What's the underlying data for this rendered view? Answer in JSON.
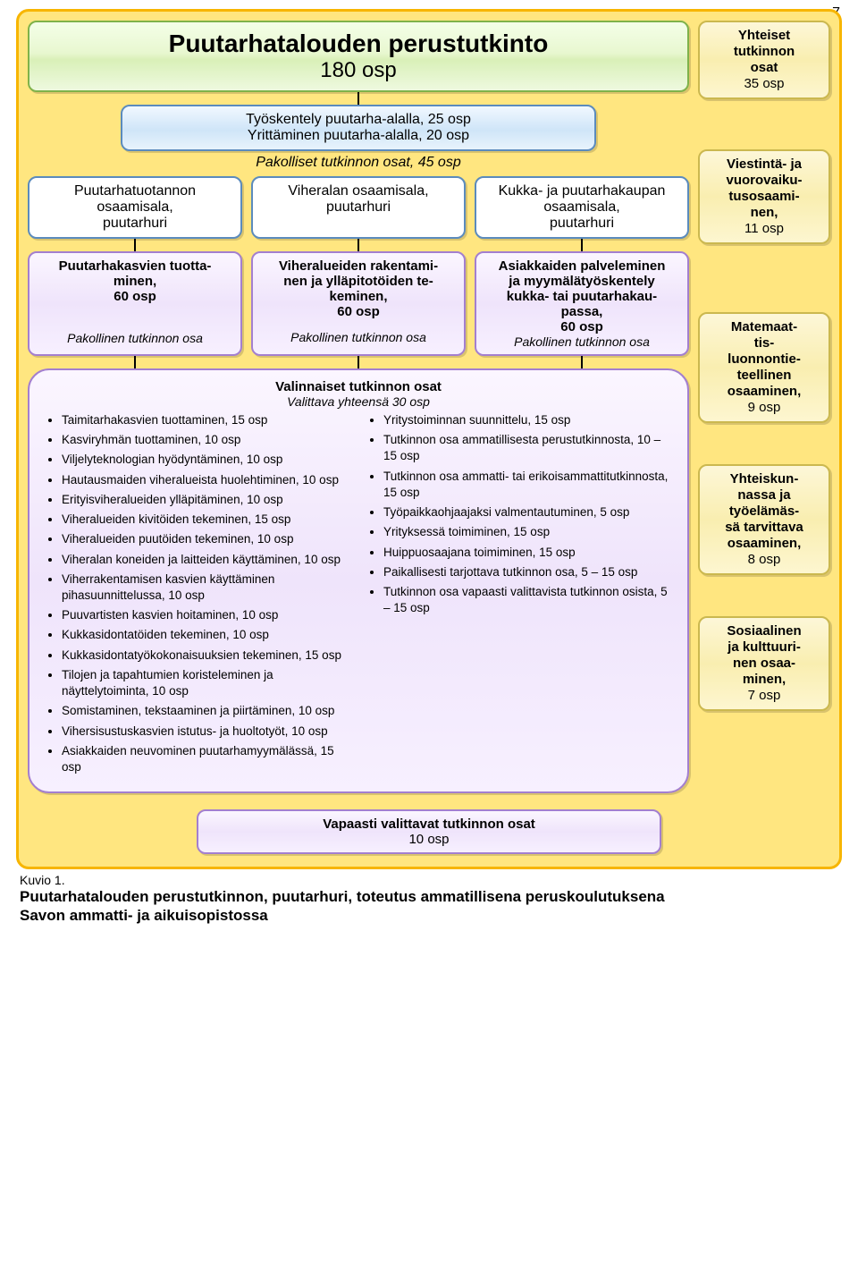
{
  "page_number": "7",
  "title": {
    "line1": "Puutarhatalouden perustutkinto",
    "line2": "180 osp"
  },
  "sub_blue": {
    "line1": "Työskentely puutarha-alalla, 25 osp",
    "line2": "Yrittäminen puutarha-alalla, 20 osp"
  },
  "pakolliset_header": "Pakolliset tutkinnon osat, 45 osp",
  "track_a": {
    "l1": "Puutarhatuotannon",
    "l2": "osaamisala,",
    "l3": "puutarhuri"
  },
  "track_b": {
    "l1": "Viheralan osaamisala,",
    "l2": "puutarhuri"
  },
  "track_c": {
    "l1": "Kukka- ja puutarhakaupan",
    "l2": "osaamisala,",
    "l3": "puutarhuri"
  },
  "mod_a": {
    "l1": "Puutarhakasvien tuotta-",
    "l2": "minen,",
    "l3": "60 osp",
    "pak": "Pakollinen tutkinnon osa"
  },
  "mod_b": {
    "l1": "Viheralueiden rakentami-",
    "l2": "nen ja ylläpitotöiden te-",
    "l3": "keminen,",
    "l4": "60 osp",
    "pak": "Pakollinen tutkinnon osa"
  },
  "mod_c": {
    "l1": "Asiakkaiden palveleminen",
    "l2": "ja myymälätyöskentely",
    "l3": "kukka- tai puutarhakau-",
    "l4": "passa,",
    "l5": "60 osp",
    "pak": "Pakollinen tutkinnon osa"
  },
  "valinnaiset": {
    "head": "Valinnaiset tutkinnon osat",
    "sub": "Valittava yhteensä 30 osp",
    "left": [
      "Taimitarhakasvien tuottaminen, 15 osp",
      "Kasviryhmän tuottaminen, 10 osp",
      "Viljelyteknologian hyödyntäminen, 10 osp",
      "Hautausmaiden viheralueista huolehtiminen, 10 osp",
      "Erityisviheralueiden ylläpitäminen, 10 osp",
      "Viheralueiden kivitöiden tekeminen, 15 osp",
      "Viheralueiden puutöiden tekeminen, 10 osp",
      "Viheralan koneiden ja laitteiden käyttäminen, 10 osp",
      "Viherrakentamisen kasvien käyttäminen pihasuunnittelussa, 10 osp",
      "Puuvartisten kasvien hoitaminen, 10 osp",
      "Kukkasidontatöiden tekeminen, 10 osp",
      "Kukkasidontatyökokonaisuuksien tekeminen, 15 osp",
      "Tilojen ja tapahtumien koristeleminen ja näyttelytoiminta, 10 osp",
      "Somistaminen, tekstaaminen ja piirtäminen, 10 osp",
      "Vihersisustuskasvien istutus- ja huoltotyöt, 10 osp",
      "Asiakkaiden neuvominen puutarhamyymälässä, 15 osp"
    ],
    "right": [
      "Yritystoiminnan suunnittelu, 15 osp",
      "Tutkinnon osa ammatillisesta perustutkinnosta, 10 – 15 osp",
      "Tutkinnon osa ammatti- tai erikoisammattitutkinnosta, 15 osp",
      "Työpaikkaohjaajaksi valmentautuminen, 5 osp",
      "Yrityksessä toimiminen, 15 osp",
      "Huippuosaajana toimiminen, 15 osp",
      "Paikallisesti tarjottava tutkinnon osa, 5 – 15 osp",
      "Tutkinnon osa vapaasti valittavista tutkinnon osista, 5 – 15 osp"
    ]
  },
  "side": {
    "s1": {
      "l1": "Yhteiset",
      "l2": "tutkinnon",
      "l3": "osat",
      "l4": "35 osp"
    },
    "s2": {
      "l1": "Viestintä- ja",
      "l2": "vuorovaiku-",
      "l3": "tusosaami-",
      "l4": "nen,",
      "l5": "11 osp"
    },
    "s3": {
      "l1": "Matemaat-",
      "l2": "tis-",
      "l3": "luonnontie-",
      "l4": "teellinen",
      "l5": "osaaminen,",
      "l6": "9 osp"
    },
    "s4": {
      "l1": "Yhteiskun-",
      "l2": "nassa ja",
      "l3": "työelämäs-",
      "l4": "sä tarvittava",
      "l5": "osaaminen,",
      "l6": "8 osp"
    },
    "s5": {
      "l1": "Sosiaalinen",
      "l2": "ja kulttuuri-",
      "l3": "nen osaa-",
      "l4": "minen,",
      "l5": "7 osp"
    }
  },
  "bottom": {
    "l1": "Vapaasti valittavat tutkinnon osat",
    "l2": "10 osp"
  },
  "caption": {
    "c1": "Kuvio 1.",
    "c2": "Puutarhatalouden perustutkinnon, puutarhuri, toteutus ammatillisena peruskoulutuksena",
    "c3": "Savon ammatti- ja aikuisopistossa"
  }
}
